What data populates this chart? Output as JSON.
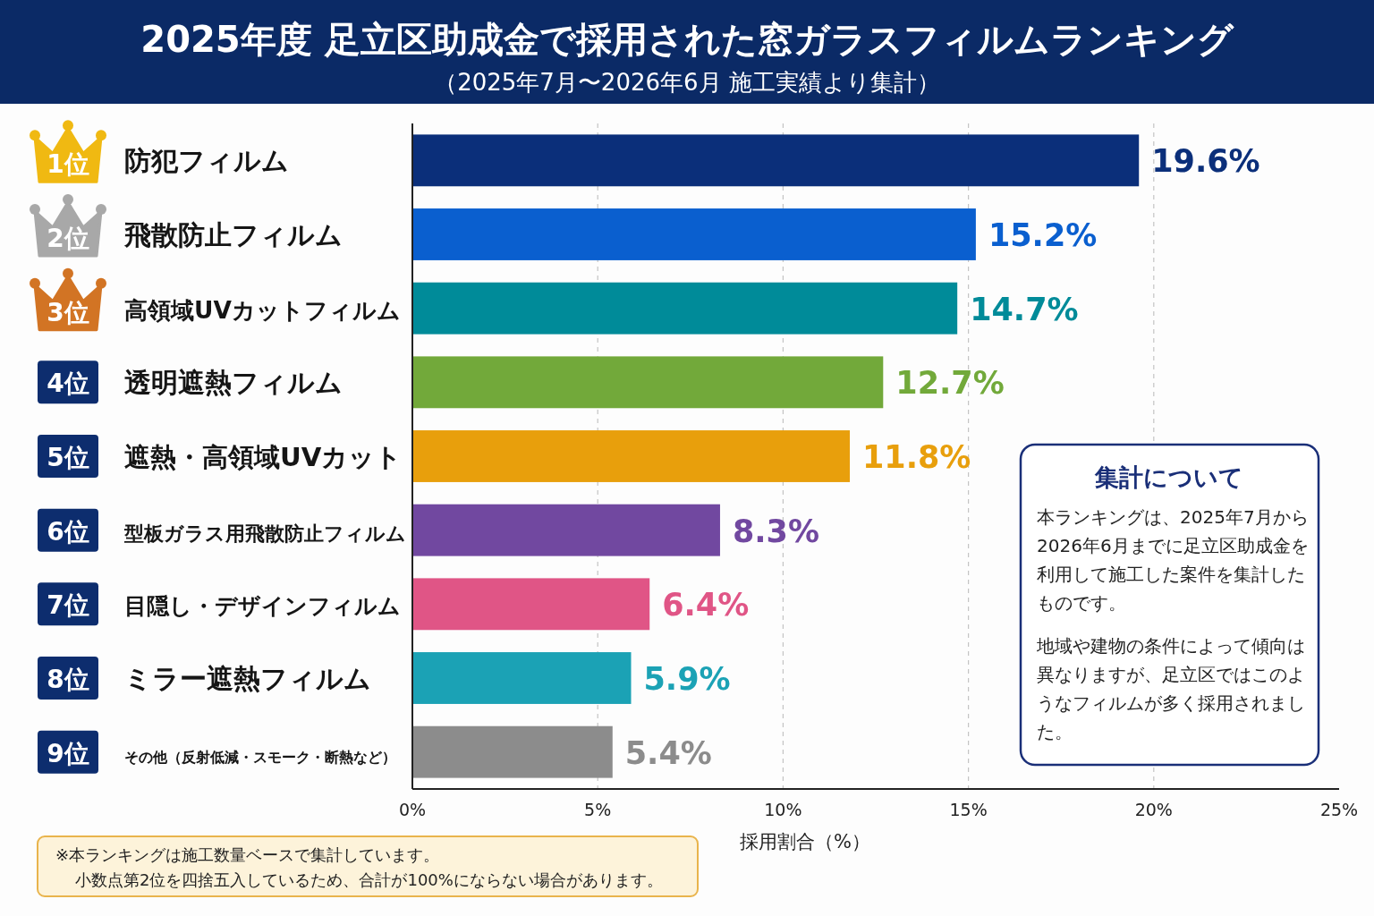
{
  "chart_data": {
    "type": "bar",
    "orientation": "horizontal",
    "title": "2025年度 足立区助成金で採用された窓ガラスフィルムランキング",
    "subtitle": "（2025年7月〜2026年6月 施工実績より集計）",
    "xlabel": "採用割合（%）",
    "categories": [
      "防犯フィルム",
      "飛散防止フィルム",
      "高領域UVカットフィルム",
      "透明遮熱フィルム",
      "遮熱・高領域UVカット",
      "型板ガラス用飛散防止フィルム",
      "目隠し・デザインフィルム",
      "ミラー遮熱フィルム",
      "その他（反射低減・スモーク・断熱など）"
    ],
    "values": [
      19.6,
      15.2,
      14.7,
      12.7,
      11.8,
      8.3,
      6.4,
      5.9,
      5.4
    ],
    "colors": [
      "#0b2f7a",
      "#0a5fcf",
      "#008b99",
      "#72a93a",
      "#e89f0c",
      "#7148a0",
      "#e05586",
      "#1ba2b5",
      "#8c8c8c"
    ],
    "value_labels": [
      "19.6%",
      "15.2%",
      "14.7%",
      "12.7%",
      "11.8%",
      "8.3%",
      "6.4%",
      "5.9%",
      "5.4%"
    ],
    "xlim": [
      0,
      25
    ],
    "xticks": [
      {
        "value": 0,
        "label": "0%"
      },
      {
        "value": 5,
        "label": "5%"
      },
      {
        "value": 10,
        "label": "10%"
      },
      {
        "value": 15,
        "label": "15%"
      },
      {
        "value": 20,
        "label": "20%"
      },
      {
        "value": 25,
        "label": "25%"
      }
    ],
    "grid": "x",
    "annotations": [
      "1位",
      "2位",
      "3位",
      "4位",
      "5位",
      "6位",
      "7位",
      "8位",
      "9位",
      "集計について",
      "本ランキングは、2025年7月から2026年6月までに足立区助成金を利用して施工した案件を集計したものです。",
      "地域や建物の条件によって傾向は異なりますが、足立区ではこのようなフィルムが多く採用されました。",
      "※本ランキングは施工数量ベースで集計しています。",
      "小数点第2位を四捨五入しているため、合計が100%にならない場合があります。"
    ]
  }
}
